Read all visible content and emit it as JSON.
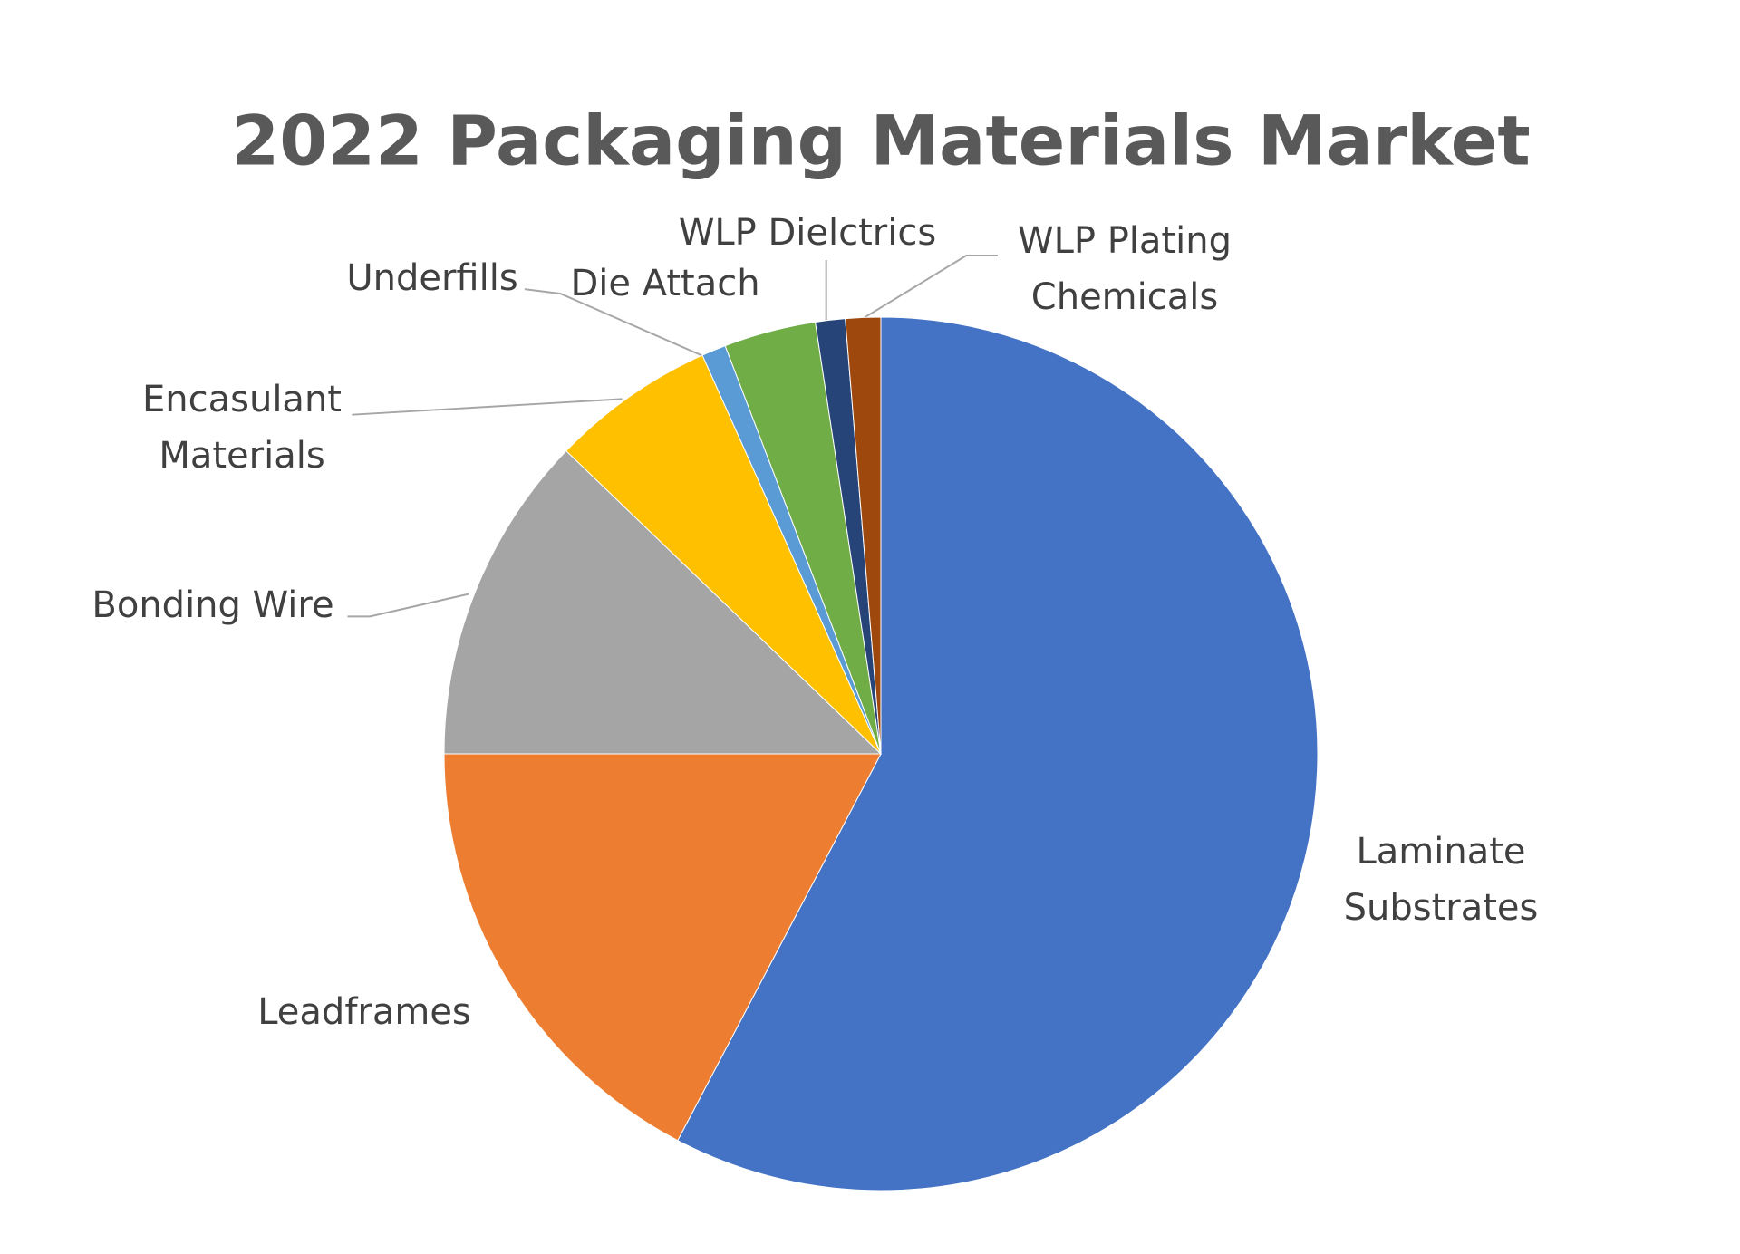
{
  "chart_data": {
    "type": "pie",
    "title": "2022 Packaging Materials Market",
    "categories": [
      "Laminate Substrates",
      "Leadframes",
      "Bonding Wire",
      "Encasulant Materials",
      "Underfills",
      "Die Attach",
      "WLP Dielctrics",
      "WLP Plating Chemicals"
    ],
    "values": [
      57.7,
      17.3,
      12.2,
      6.1,
      0.9,
      3.4,
      1.1,
      1.3
    ],
    "colors": [
      "#4472c4",
      "#ed7d31",
      "#a5a5a5",
      "#ffc000",
      "#5b9bd5",
      "#70ad47",
      "#264478",
      "#9e480e"
    ]
  }
}
